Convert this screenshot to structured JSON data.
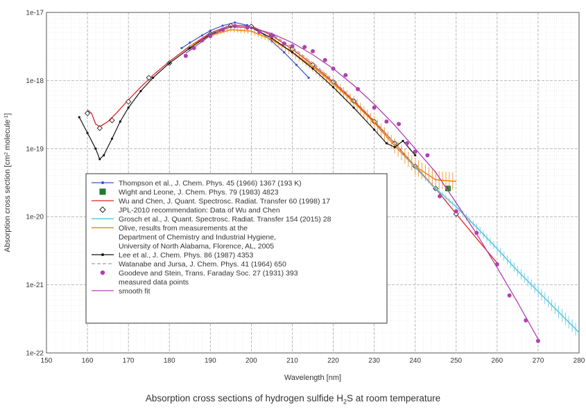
{
  "caption": {
    "pre": "Absorption cross sections of hydrogen sulfide H",
    "sub": "2",
    "post": "S at room temperature"
  },
  "chart_data": {
    "type": "line",
    "xlabel": "Wavelength [nm]",
    "ylabel": {
      "pre": "Absorption cross section [cm",
      "sup1": "2",
      "mid": " molecule",
      "sup2": "-1",
      "post": "]"
    },
    "xlim": [
      150,
      280
    ],
    "ylim": [
      1e-22,
      1e-17
    ],
    "yscale": "log",
    "grid": true,
    "xticks": [
      "150",
      "160",
      "170",
      "180",
      "190",
      "200",
      "210",
      "220",
      "230",
      "240",
      "250",
      "260",
      "270",
      "280"
    ],
    "yticks": [
      "1e-22",
      "1e-21",
      "1e-20",
      "1e-19",
      "1e-18",
      "1e-17"
    ],
    "legend_position": "center-left",
    "series": [
      {
        "name": "Thompson et al., J. Chem. Phys. 45 (1966) 1367 (193 K)",
        "color": "#3b53c8",
        "style": "line-dot",
        "x": [
          183,
          185,
          188,
          190,
          193,
          196,
          199,
          202,
          205,
          208,
          211,
          214
        ],
        "y": [
          3e-18,
          3.6e-18,
          4.6e-18,
          5.4e-18,
          6.4e-18,
          7.1e-18,
          6.5e-18,
          5.3e-18,
          3.8e-18,
          2.6e-18,
          1.7e-18,
          1.1e-18
        ]
      },
      {
        "name": "Wight and Leone, J. Chem. Phys. 79 (1983) 4823",
        "color": "#1f7a2e",
        "style": "square",
        "x": [
          248
        ],
        "y": [
          2.6e-20
        ]
      },
      {
        "name": "Wu and Chen, J. Quant. Spectrosc. Radiat. Transfer 60 (1998) 17",
        "color": "#e02020",
        "style": "line",
        "x": [
          160,
          161,
          162,
          163,
          165,
          167,
          170,
          173,
          176,
          180,
          185,
          190,
          195,
          200,
          205,
          210,
          215,
          220,
          225,
          230,
          235,
          240,
          245,
          250,
          255,
          260
        ],
        "y": [
          3.7e-19,
          3.3e-19,
          2.3e-19,
          2.1e-19,
          2.5e-19,
          3.3e-19,
          5.2e-19,
          8e-19,
          1.2e-18,
          1.9e-18,
          3.2e-18,
          5e-18,
          6.5e-18,
          6.3e-18,
          4.6e-18,
          2.9e-18,
          1.7e-18,
          9.5e-19,
          5e-19,
          2.5e-19,
          1.2e-19,
          5.5e-20,
          2.6e-20,
          1.1e-20,
          4.8e-21,
          2.1e-21
        ]
      },
      {
        "name": "JPL-2010 recommendation: Data of Wu and Chen",
        "color": "#222222",
        "style": "diamond",
        "x": [
          160,
          163,
          166,
          170,
          175,
          180,
          185,
          190,
          195,
          200,
          205,
          210,
          215,
          220,
          225,
          230,
          235,
          240,
          245,
          250
        ],
        "y": [
          3.3e-19,
          2e-19,
          2.6e-19,
          4.9e-19,
          1.1e-18,
          1.8e-18,
          3e-18,
          4.8e-18,
          6.4e-18,
          6.2e-18,
          4.6e-18,
          2.9e-18,
          1.7e-18,
          9.5e-19,
          5e-19,
          2.5e-19,
          1.2e-19,
          5.5e-20,
          2.6e-20,
          1.1e-20
        ]
      },
      {
        "name": "Grosch et al., J. Quant. Spectrosc. Radiat. Transfer 154 (2015) 28",
        "color": "#5bc8e0",
        "style": "noisy",
        "x": [
          235,
          240,
          245,
          250,
          255,
          260,
          265,
          270,
          275,
          280
        ],
        "y": [
          1.1e-19,
          5.3e-20,
          2.6e-20,
          1.4e-20,
          7e-21,
          3.4e-21,
          1.6e-21,
          8e-22,
          4e-22,
          2e-22
        ]
      },
      {
        "name": "Olive, results from measurements at the\nDepartment of Chemistry and Industrial Hygiene,\nUniversity of North Alabama, Florence, AL, 2005",
        "color": "#f08a10",
        "style": "noisy",
        "x": [
          185,
          190,
          195,
          200,
          205,
          210,
          215,
          220,
          225,
          230,
          235,
          240,
          245,
          250
        ],
        "y": [
          3.2e-18,
          4.6e-18,
          5.6e-18,
          5.3e-18,
          4e-18,
          2.6e-18,
          1.6e-18,
          9e-19,
          4.8e-19,
          2.4e-19,
          1.1e-19,
          5.5e-20,
          3.5e-20,
          3.3e-20
        ]
      },
      {
        "name": "Lee et al., J. Chem. Phys. 86 (1987) 4353",
        "color": "#111111",
        "style": "line-dot",
        "x": [
          158,
          160,
          162,
          163,
          164,
          166,
          168,
          170,
          173,
          176,
          180,
          185,
          190,
          195,
          200,
          205,
          210,
          215,
          220,
          225,
          230,
          233,
          235,
          237,
          240
        ],
        "y": [
          2.9e-19,
          1.7e-19,
          1e-19,
          7e-20,
          8e-20,
          1.4e-19,
          2.5e-19,
          4e-19,
          7e-19,
          1.1e-18,
          1.8e-18,
          3e-18,
          4.8e-18,
          6.2e-18,
          6e-18,
          4.2e-18,
          2.6e-18,
          1.5e-18,
          8e-19,
          4e-19,
          1.9e-19,
          1.2e-19,
          1.05e-19,
          1.3e-19,
          8e-20
        ]
      },
      {
        "name": "Watanabe and Jursa,  J. Chem. Phys. 41 (1964) 650",
        "color": "#9a9aaa",
        "style": "dashed",
        "x": [
          190,
          195,
          200,
          205,
          210,
          215,
          220,
          225,
          230,
          235,
          240,
          245
        ],
        "y": [
          4.9e-18,
          6.1e-18,
          6e-18,
          4.8e-18,
          3.1e-18,
          1.8e-18,
          1e-18,
          5.2e-19,
          2.6e-19,
          1.2e-19,
          5.5e-20,
          2.5e-20
        ]
      },
      {
        "name": "Goodeve and Stein, Trans. Faraday Soc. 27 (1931) 393\nmeasured data points",
        "color": "#b040b0",
        "style": "dots",
        "x": [
          184,
          186,
          188,
          190,
          193,
          196,
          199,
          202,
          205,
          208,
          210,
          213,
          215,
          218,
          220,
          223,
          226,
          230,
          233,
          236,
          238,
          240,
          243,
          246,
          250,
          255,
          260,
          263,
          267,
          270
        ],
        "y": [
          2.3e-18,
          3e-18,
          3.9e-18,
          4.5e-18,
          5.6e-18,
          6.3e-18,
          6e-18,
          5.2e-18,
          4.5e-18,
          3.5e-18,
          3.2e-18,
          3.1e-18,
          2.7e-18,
          2e-18,
          1.5e-18,
          1.2e-18,
          7.5e-19,
          4e-19,
          2.5e-19,
          2.3e-19,
          1.2e-19,
          9e-20,
          8e-20,
          2e-20,
          1.2e-20,
          5.8e-21,
          2e-21,
          7e-22,
          3e-22,
          1.5e-22
        ]
      },
      {
        "name": "smooth fit",
        "color": "#b040b0",
        "style": "line",
        "x": [
          184,
          190,
          195,
          200,
          205,
          210,
          215,
          220,
          225,
          230,
          235,
          240,
          245,
          250,
          255,
          260,
          265,
          270
        ],
        "y": [
          2.5e-18,
          4.6e-18,
          6.2e-18,
          6e-18,
          4.9e-18,
          3.6e-18,
          2.4e-18,
          1.5e-18,
          8.5e-19,
          4.5e-19,
          2.2e-19,
          1e-19,
          4.5e-20,
          1.6e-20,
          5.6e-21,
          1.8e-21,
          5.5e-22,
          1.6e-22
        ]
      }
    ]
  }
}
